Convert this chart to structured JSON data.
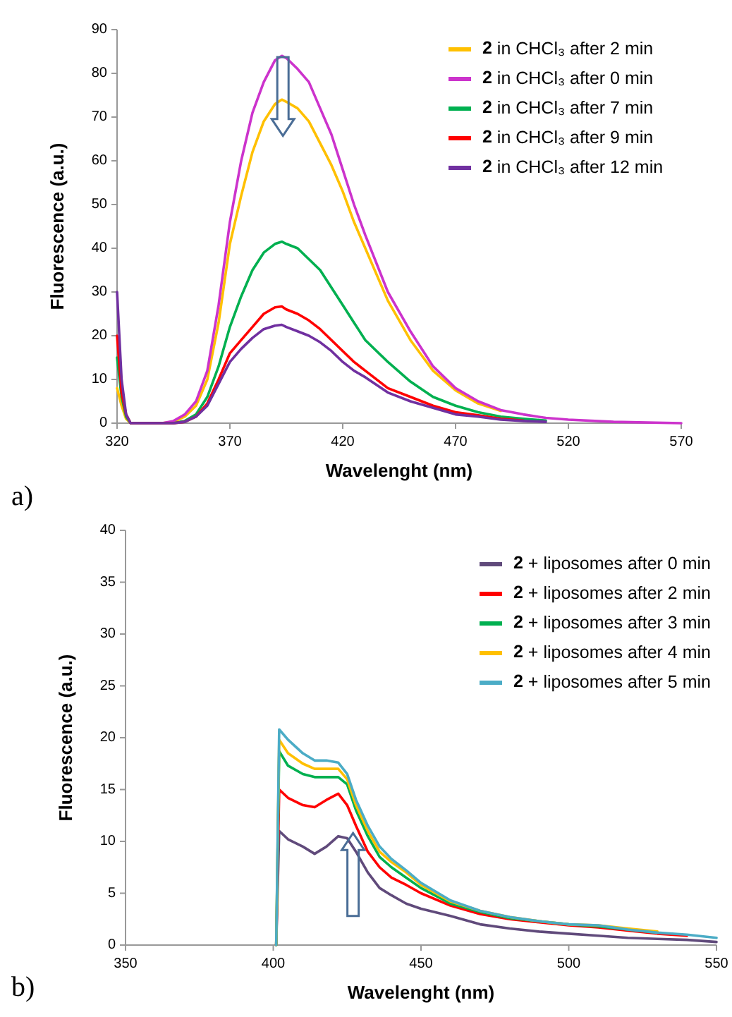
{
  "chart_data": [
    {
      "type": "line",
      "xlabel": "Wavelenght (nm)",
      "ylabel": "Fluorescence (a.u.)",
      "xlim": [
        320,
        570
      ],
      "xticks": [
        320,
        370,
        420,
        470,
        520,
        570
      ],
      "ylim": [
        0,
        90
      ],
      "yticks": [
        0,
        10,
        20,
        30,
        40,
        50,
        60,
        70,
        80,
        90
      ],
      "grid": false,
      "legend": "top right",
      "annotations": [
        "a)"
      ],
      "x": [
        320,
        322,
        324,
        326,
        330,
        340,
        345,
        350,
        355,
        360,
        365,
        370,
        375,
        380,
        385,
        390,
        393,
        395,
        400,
        405,
        410,
        415,
        420,
        425,
        430,
        440,
        450,
        460,
        470,
        480,
        490,
        500,
        510,
        520,
        540,
        570
      ],
      "series": [
        {
          "name": "2 in CHCl₃ after 2 min",
          "color": "#ffc000",
          "values": [
            8,
            4,
            1,
            0,
            0,
            0,
            0.3,
            1.5,
            4,
            10,
            23,
            41,
            52,
            62,
            69,
            73,
            74,
            73.5,
            72,
            69,
            64,
            59,
            53,
            46,
            40,
            28,
            19,
            12,
            7.5,
            4.5,
            2.8,
            null,
            null,
            null,
            null,
            null
          ]
        },
        {
          "name": "2 in CHCl₃ after 0 min",
          "color": "#cc33cc",
          "values": [
            null,
            null,
            null,
            null,
            0,
            0,
            0.5,
            2,
            5,
            12,
            27,
            46,
            60,
            71,
            78,
            83,
            84,
            83.5,
            81,
            78,
            72,
            66,
            58,
            50,
            43,
            30,
            21,
            13,
            8,
            5,
            3,
            2,
            1.2,
            0.8,
            0.3,
            0
          ]
        },
        {
          "name": "2 in CHCl₃ after 7 min",
          "color": "#00b050",
          "values": [
            15,
            6,
            1.5,
            0,
            0,
            0,
            0,
            0.5,
            2,
            6,
            13,
            22,
            29,
            35,
            39,
            41,
            41.5,
            41,
            40,
            37.5,
            35,
            31,
            27,
            23,
            19,
            14,
            9.5,
            6,
            4,
            2.5,
            1.5,
            1,
            0.6,
            null,
            null,
            null
          ]
        },
        {
          "name": "2 in CHCl₃ after 9 min",
          "color": "#ff0000",
          "values": [
            20,
            7,
            2,
            0,
            0,
            0,
            0,
            0.3,
            1.5,
            4.5,
            10,
            16,
            19,
            22,
            25,
            26.5,
            26.7,
            26,
            25,
            23.5,
            21.5,
            19,
            16.5,
            14,
            12,
            8,
            6,
            4,
            2.5,
            1.8,
            1,
            0.6,
            null,
            null,
            null,
            null
          ]
        },
        {
          "name": "2 in CHCl₃ after 12 min",
          "color": "#7030a0",
          "values": [
            30,
            10,
            2,
            0,
            0,
            0,
            0,
            0.3,
            1.5,
            4,
            9,
            14,
            17,
            19.5,
            21.5,
            22.3,
            22.5,
            22,
            21,
            20,
            18.5,
            16.5,
            14,
            12,
            10.5,
            7,
            5,
            3.5,
            2,
            1.5,
            0.8,
            0.5,
            0.3,
            null,
            null,
            null
          ]
        }
      ]
    },
    {
      "type": "line",
      "xlabel": "Wavelenght (nm)",
      "ylabel": "Fluorescence (a.u.)",
      "xlim": [
        350,
        550
      ],
      "xticks": [
        350,
        400,
        450,
        500,
        550
      ],
      "ylim": [
        0,
        40
      ],
      "yticks": [
        0,
        5,
        10,
        15,
        20,
        25,
        30,
        35,
        40
      ],
      "grid": false,
      "legend": "top right",
      "annotations": [
        "b)"
      ],
      "x": [
        401,
        402,
        405,
        410,
        414,
        418,
        422,
        425,
        428,
        432,
        436,
        440,
        445,
        450,
        460,
        470,
        480,
        490,
        500,
        510,
        520,
        530,
        540,
        550
      ],
      "series": [
        {
          "name": "2 + liposomes after 0 min",
          "color": "#604a7b",
          "values": [
            0,
            11,
            10.2,
            9.5,
            8.8,
            9.5,
            10.5,
            10.3,
            9,
            7,
            5.5,
            4.8,
            4,
            3.5,
            2.8,
            2,
            1.6,
            1.3,
            1.1,
            0.9,
            0.7,
            0.6,
            0.5,
            0.3
          ]
        },
        {
          "name": "2 + liposomes after 2 min",
          "color": "#ff0000",
          "values": [
            0,
            15,
            14.2,
            13.5,
            13.3,
            14,
            14.6,
            13.5,
            11.5,
            9,
            7.5,
            6.5,
            5.8,
            5,
            3.8,
            3,
            2.5,
            2.2,
            1.9,
            1.7,
            1.4,
            1.1,
            0.9,
            null
          ]
        },
        {
          "name": "2 + liposomes after 3 min",
          "color": "#00b050",
          "values": [
            0,
            18.7,
            17.3,
            16.5,
            16.2,
            16.2,
            16.2,
            15.5,
            13,
            10.5,
            8.5,
            7.5,
            6.5,
            5.5,
            4,
            3.2,
            2.6,
            2.3,
            2,
            1.8,
            1.5,
            1.2,
            null,
            null
          ]
        },
        {
          "name": "2 + liposomes after 4 min",
          "color": "#ffc000",
          "values": [
            0,
            19.8,
            18.5,
            17.5,
            17,
            17,
            17,
            16,
            13.5,
            11,
            9,
            8,
            7,
            5.8,
            4.2,
            3.3,
            2.7,
            2.3,
            2,
            1.9,
            1.6,
            1.3,
            null,
            null
          ]
        },
        {
          "name": "2 + liposomes after 5 min",
          "color": "#4bacc6",
          "values": [
            0,
            20.8,
            19.8,
            18.5,
            17.8,
            17.8,
            17.6,
            16.5,
            14,
            11.5,
            9.5,
            8.3,
            7.2,
            6,
            4.3,
            3.3,
            2.7,
            2.3,
            2,
            1.9,
            1.5,
            1.2,
            1,
            0.7
          ]
        }
      ]
    }
  ]
}
